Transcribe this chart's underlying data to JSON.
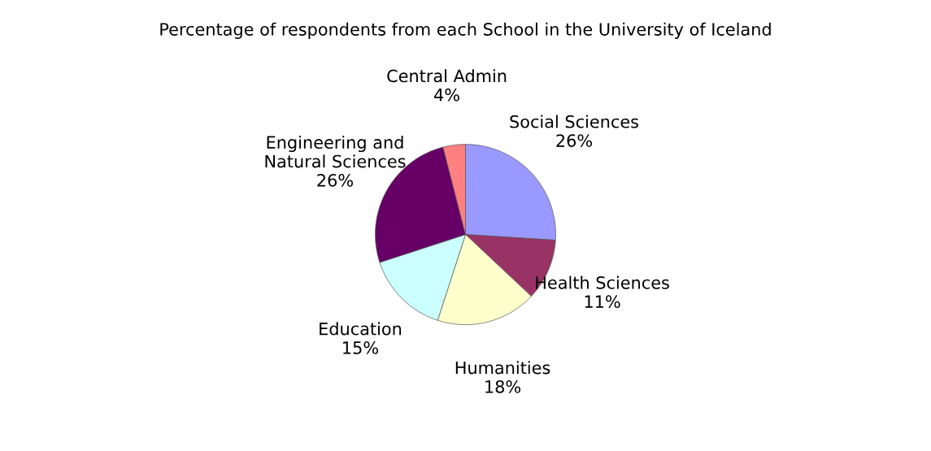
{
  "chart_data": {
    "type": "pie",
    "title": "Percentage of respondents from each School in the University of Iceland",
    "categories": [
      "Social Sciences",
      "Health Sciences",
      "Humanities",
      "Education",
      "Engineering and\nNatural Sciences",
      "Central Admin"
    ],
    "values": [
      26,
      11,
      18,
      15,
      26,
      4
    ],
    "value_labels": [
      "26%",
      "11%",
      "18%",
      "15%",
      "26%",
      "4%"
    ],
    "colors": [
      "#9999ff",
      "#993366",
      "#ffffcc",
      "#ccffff",
      "#660066",
      "#ff8080"
    ],
    "legend": false
  }
}
